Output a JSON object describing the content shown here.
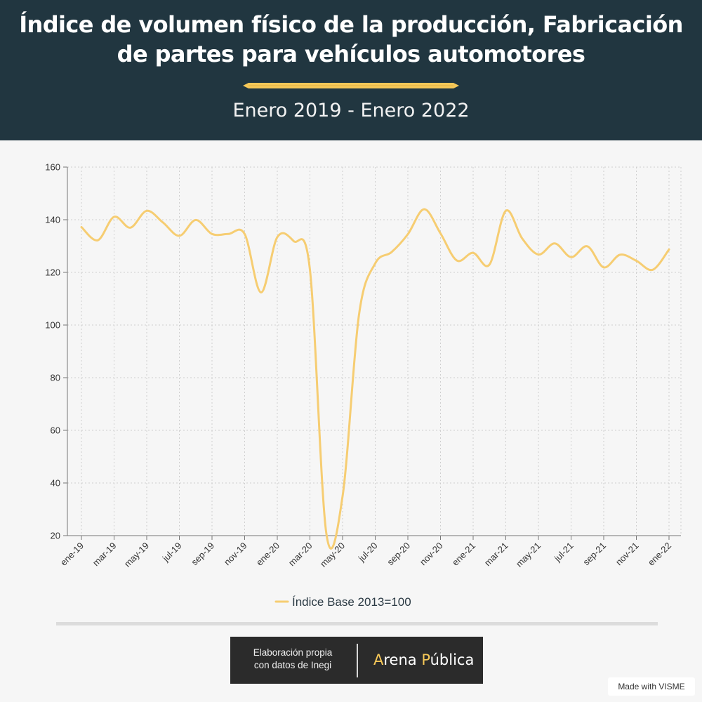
{
  "header": {
    "title": "Índice de volumen físico de la producción, Fabricación de partes para vehículos automotores",
    "subtitle": "Enero 2019 - Enero 2022",
    "background_color": "#213640",
    "accent_color": "#f6c858"
  },
  "chart_data": {
    "type": "line",
    "title": "Índice de volumen físico de la producción, Fabricación de partes para vehículos automotores",
    "subtitle": "Enero 2019 - Enero 2022",
    "xlabel": "",
    "ylabel": "",
    "ylim": [
      20,
      160
    ],
    "y_ticks": [
      20,
      40,
      60,
      80,
      100,
      120,
      140,
      160
    ],
    "grid": true,
    "legend_position": "bottom-center",
    "x": [
      "ene-19",
      "feb-19",
      "mar-19",
      "abr-19",
      "may-19",
      "jun-19",
      "jul-19",
      "ago-19",
      "sep-19",
      "oct-19",
      "nov-19",
      "dic-19",
      "ene-20",
      "feb-20",
      "mar-20",
      "abr-20",
      "may-20",
      "jun-20",
      "jul-20",
      "ago-20",
      "sep-20",
      "oct-20",
      "nov-20",
      "dic-20",
      "ene-21",
      "feb-21",
      "mar-21",
      "abr-21",
      "may-21",
      "jun-21",
      "jul-21",
      "ago-21",
      "sep-21",
      "oct-21",
      "nov-21",
      "dic-21",
      "ene-22"
    ],
    "x_tick_labels": [
      "ene-19",
      "mar-19",
      "may-19",
      "jul-19",
      "sep-19",
      "nov-19",
      "ene-20",
      "mar-20",
      "may-20",
      "jul-20",
      "sep-20",
      "nov-20",
      "ene-21",
      "mar-21",
      "may-21",
      "jul-21",
      "sep-21",
      "nov-21",
      "ene-22"
    ],
    "series": [
      {
        "name": "Índice Base 2013=100",
        "color": "#f6cd72",
        "values": [
          137.2,
          132.2,
          141.1,
          137.0,
          143.4,
          138.9,
          133.9,
          139.9,
          134.6,
          134.6,
          134.6,
          112.4,
          133.4,
          131.9,
          121.0,
          21.0,
          35.0,
          103.7,
          123.4,
          127.7,
          134.5,
          144.0,
          134.8,
          124.5,
          127.4,
          123.0,
          143.4,
          132.9,
          126.8,
          131.0,
          125.8,
          129.9,
          121.9,
          126.7,
          124.4,
          121.0,
          128.7
        ]
      }
    ]
  },
  "footer": {
    "credit_line1": "Elaboración propia",
    "credit_line2": "con datos de Inegi",
    "brand_first_letter": "A",
    "brand_rest1": "rena ",
    "brand_second_letter": "P",
    "brand_rest2": "ública",
    "made_with": "Made with VISME"
  }
}
